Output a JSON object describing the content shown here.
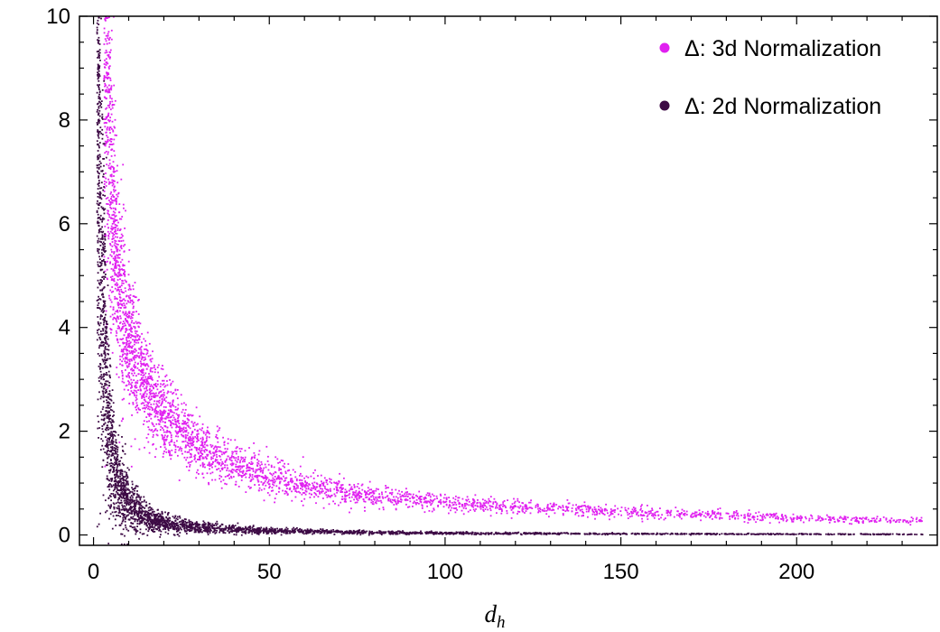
{
  "chart_data": {
    "type": "scatter",
    "title": "",
    "xlabel": "d",
    "xlabel_subscript": "h",
    "ylabel": "",
    "xlim": [
      -4,
      240
    ],
    "ylim": [
      -0.2,
      10
    ],
    "xticks": [
      0,
      50,
      100,
      150,
      200
    ],
    "yticks": [
      0,
      2,
      4,
      6,
      8,
      10
    ],
    "xtick_labels": [
      "0",
      "50",
      "100",
      "150",
      "200"
    ],
    "ytick_labels": [
      "0",
      "2",
      "4",
      "6",
      "8",
      "10"
    ],
    "grid": false,
    "frame": "full box with inward minor ticks",
    "legend_position": "top-right",
    "x_range_sampled": [
      1,
      236
    ],
    "series": [
      {
        "name": "Δ: 3d Normalization",
        "color": "#e020f0",
        "trend": [
          [
            3,
            10.0
          ],
          [
            4,
            8.5
          ],
          [
            5,
            6.6
          ],
          [
            7,
            5.0
          ],
          [
            10,
            3.7
          ],
          [
            15,
            2.8
          ],
          [
            20,
            2.3
          ],
          [
            30,
            1.7
          ],
          [
            40,
            1.35
          ],
          [
            50,
            1.1
          ],
          [
            75,
            0.78
          ],
          [
            100,
            0.62
          ],
          [
            125,
            0.52
          ],
          [
            150,
            0.45
          ],
          [
            175,
            0.38
          ],
          [
            200,
            0.33
          ],
          [
            225,
            0.28
          ],
          [
            236,
            0.26
          ]
        ]
      },
      {
        "name": "Δ: 2d Normalization",
        "color": "#3d0a45",
        "trend": [
          [
            1,
            9.3
          ],
          [
            1.5,
            8.0
          ],
          [
            2,
            6.0
          ],
          [
            3,
            4.2
          ],
          [
            4,
            2.5
          ],
          [
            5,
            1.7
          ],
          [
            7,
            1.0
          ],
          [
            10,
            0.55
          ],
          [
            15,
            0.32
          ],
          [
            20,
            0.22
          ],
          [
            30,
            0.14
          ],
          [
            50,
            0.08
          ],
          [
            75,
            0.05
          ],
          [
            100,
            0.035
          ],
          [
            150,
            0.022
          ],
          [
            200,
            0.015
          ],
          [
            236,
            0.012
          ]
        ]
      }
    ]
  }
}
